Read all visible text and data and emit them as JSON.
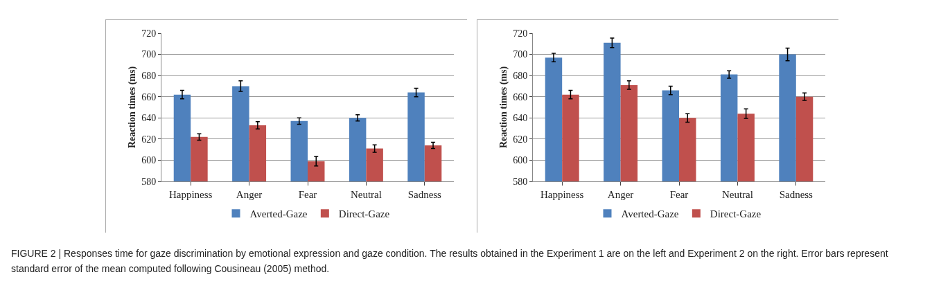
{
  "chart_data": [
    {
      "type": "bar",
      "ylabel": "Reaction times (ms)",
      "categories": [
        "Happiness",
        "Anger",
        "Fear",
        "Neutral",
        "Sadness"
      ],
      "series": [
        {
          "name": "Averted-Gaze",
          "color": "#4f81bd",
          "values": [
            662,
            670,
            637,
            640,
            664
          ],
          "errors": [
            4,
            5,
            3,
            3,
            4
          ]
        },
        {
          "name": "Direct-Gaze",
          "color": "#c0504d",
          "values": [
            622,
            633,
            599,
            611,
            614
          ],
          "errors": [
            3,
            3.5,
            4.5,
            3.5,
            3
          ]
        }
      ],
      "ylim": [
        580,
        720
      ],
      "yticks": [
        580,
        600,
        620,
        640,
        660,
        680,
        700,
        720
      ],
      "grid": "y",
      "legend": "bottom",
      "annotations": [
        "FIGURE 2 | Responses time for gaze discrimination by emotional expression and gaze condition. The results obtained in the Experiment 1 are on the left and Experiment 2 on the right. Error bars represent standard error of the mean computed following Cousineau (2005) method."
      ]
    },
    {
      "type": "bar",
      "ylabel": "Reaction times (ms)",
      "categories": [
        "Happiness",
        "Anger",
        "Fear",
        "Neutral",
        "Sadness"
      ],
      "series": [
        {
          "name": "Averted-Gaze",
          "color": "#4f81bd",
          "values": [
            697,
            711,
            666,
            681,
            700
          ],
          "errors": [
            4,
            4.5,
            4,
            3.5,
            6
          ]
        },
        {
          "name": "Direct-Gaze",
          "color": "#c0504d",
          "values": [
            662,
            671,
            640,
            644,
            660
          ],
          "errors": [
            4,
            4,
            4,
            4.5,
            3.5
          ]
        }
      ],
      "ylim": [
        580,
        720
      ],
      "yticks": [
        580,
        600,
        620,
        640,
        660,
        680,
        700,
        720
      ],
      "grid": "y",
      "legend": "bottom"
    }
  ]
}
